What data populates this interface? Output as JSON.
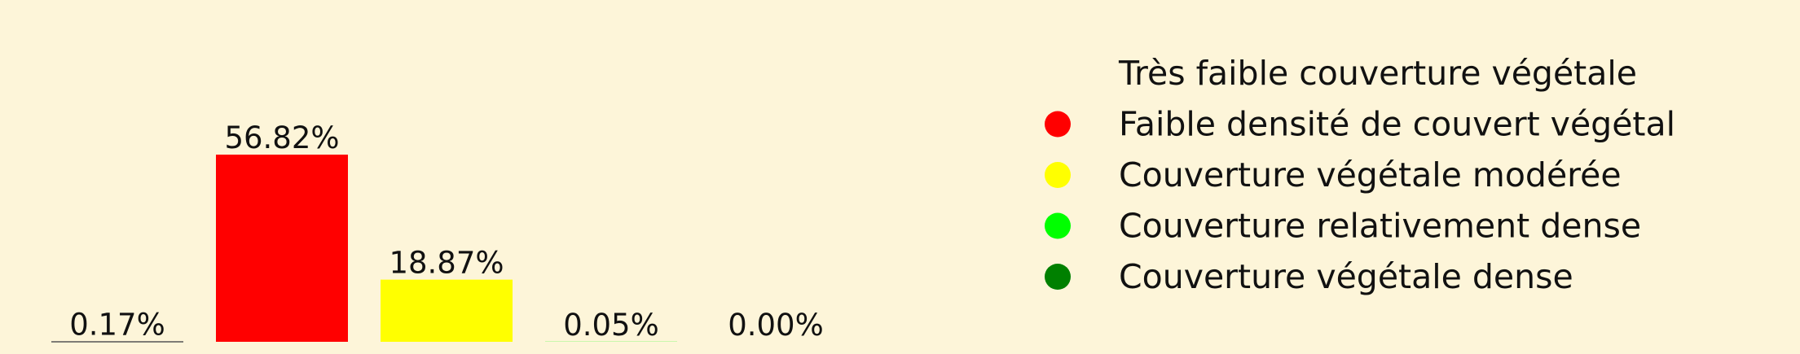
{
  "chart_data": {
    "type": "bar",
    "categories": [
      "Très faible couverture végétale",
      "Faible densité de couvert végétal",
      "Couverture végétale modérée",
      "Couverture relativement dense",
      "Couverture végétale dense"
    ],
    "values": [
      0.17,
      56.82,
      18.87,
      0.05,
      0.0
    ],
    "value_labels": [
      "0.17%",
      "56.82%",
      "18.87%",
      "0.05%",
      "0.00%"
    ],
    "colors": [
      "#fdf5d9",
      "#ff0000",
      "#ffff00",
      "#00ff00",
      "#008000"
    ],
    "legend": {
      "position": "right",
      "entries": [
        "Très faible couverture végétale",
        "Faible densité de couvert végétal",
        "Couverture végétale modérée",
        "Couverture relativement dense",
        "Couverture végétale dense"
      ]
    },
    "title": "",
    "xlabel": "",
    "ylabel": "",
    "grid": false,
    "ylim": [
      0,
      56.82
    ]
  }
}
